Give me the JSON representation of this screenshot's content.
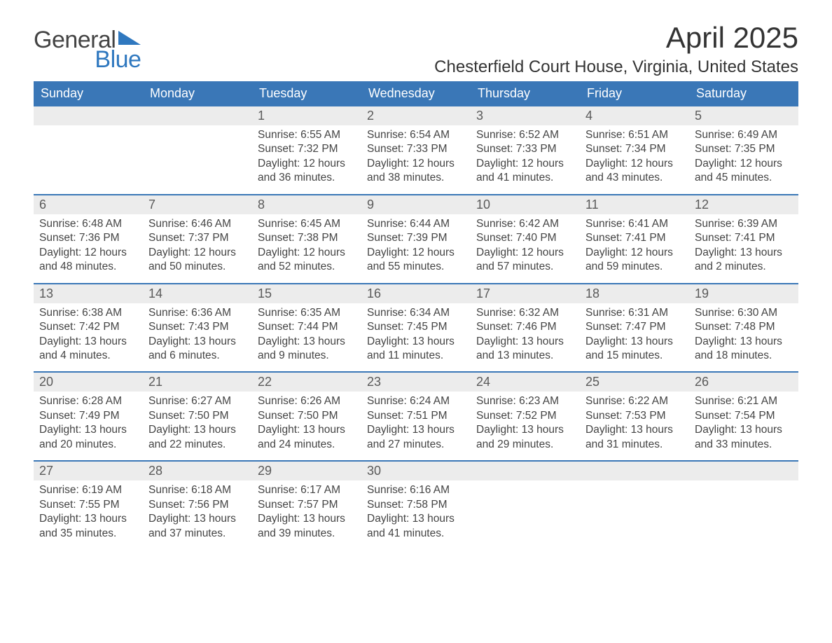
{
  "brand": {
    "general": "General",
    "blue": "Blue",
    "accent_color": "#2f78bf"
  },
  "title": "April 2025",
  "location": "Chesterfield Court House, Virginia, United States",
  "colors": {
    "header_bg": "#3a77b7",
    "header_text": "#ffffff",
    "daynum_bg": "#ececec",
    "daynum_text": "#5a5a5a",
    "body_text": "#444444",
    "week_border": "#3a77b7",
    "page_bg": "#ffffff"
  },
  "typography": {
    "title_fontsize": 42,
    "location_fontsize": 24,
    "header_fontsize": 18,
    "body_fontsize": 15.5
  },
  "day_headers": [
    "Sunday",
    "Monday",
    "Tuesday",
    "Wednesday",
    "Thursday",
    "Friday",
    "Saturday"
  ],
  "weeks": [
    [
      {
        "day": "",
        "sunrise": "",
        "sunset": "",
        "daylight": ""
      },
      {
        "day": "",
        "sunrise": "",
        "sunset": "",
        "daylight": ""
      },
      {
        "day": "1",
        "sunrise": "Sunrise: 6:55 AM",
        "sunset": "Sunset: 7:32 PM",
        "daylight": "Daylight: 12 hours and 36 minutes."
      },
      {
        "day": "2",
        "sunrise": "Sunrise: 6:54 AM",
        "sunset": "Sunset: 7:33 PM",
        "daylight": "Daylight: 12 hours and 38 minutes."
      },
      {
        "day": "3",
        "sunrise": "Sunrise: 6:52 AM",
        "sunset": "Sunset: 7:33 PM",
        "daylight": "Daylight: 12 hours and 41 minutes."
      },
      {
        "day": "4",
        "sunrise": "Sunrise: 6:51 AM",
        "sunset": "Sunset: 7:34 PM",
        "daylight": "Daylight: 12 hours and 43 minutes."
      },
      {
        "day": "5",
        "sunrise": "Sunrise: 6:49 AM",
        "sunset": "Sunset: 7:35 PM",
        "daylight": "Daylight: 12 hours and 45 minutes."
      }
    ],
    [
      {
        "day": "6",
        "sunrise": "Sunrise: 6:48 AM",
        "sunset": "Sunset: 7:36 PM",
        "daylight": "Daylight: 12 hours and 48 minutes."
      },
      {
        "day": "7",
        "sunrise": "Sunrise: 6:46 AM",
        "sunset": "Sunset: 7:37 PM",
        "daylight": "Daylight: 12 hours and 50 minutes."
      },
      {
        "day": "8",
        "sunrise": "Sunrise: 6:45 AM",
        "sunset": "Sunset: 7:38 PM",
        "daylight": "Daylight: 12 hours and 52 minutes."
      },
      {
        "day": "9",
        "sunrise": "Sunrise: 6:44 AM",
        "sunset": "Sunset: 7:39 PM",
        "daylight": "Daylight: 12 hours and 55 minutes."
      },
      {
        "day": "10",
        "sunrise": "Sunrise: 6:42 AM",
        "sunset": "Sunset: 7:40 PM",
        "daylight": "Daylight: 12 hours and 57 minutes."
      },
      {
        "day": "11",
        "sunrise": "Sunrise: 6:41 AM",
        "sunset": "Sunset: 7:41 PM",
        "daylight": "Daylight: 12 hours and 59 minutes."
      },
      {
        "day": "12",
        "sunrise": "Sunrise: 6:39 AM",
        "sunset": "Sunset: 7:41 PM",
        "daylight": "Daylight: 13 hours and 2 minutes."
      }
    ],
    [
      {
        "day": "13",
        "sunrise": "Sunrise: 6:38 AM",
        "sunset": "Sunset: 7:42 PM",
        "daylight": "Daylight: 13 hours and 4 minutes."
      },
      {
        "day": "14",
        "sunrise": "Sunrise: 6:36 AM",
        "sunset": "Sunset: 7:43 PM",
        "daylight": "Daylight: 13 hours and 6 minutes."
      },
      {
        "day": "15",
        "sunrise": "Sunrise: 6:35 AM",
        "sunset": "Sunset: 7:44 PM",
        "daylight": "Daylight: 13 hours and 9 minutes."
      },
      {
        "day": "16",
        "sunrise": "Sunrise: 6:34 AM",
        "sunset": "Sunset: 7:45 PM",
        "daylight": "Daylight: 13 hours and 11 minutes."
      },
      {
        "day": "17",
        "sunrise": "Sunrise: 6:32 AM",
        "sunset": "Sunset: 7:46 PM",
        "daylight": "Daylight: 13 hours and 13 minutes."
      },
      {
        "day": "18",
        "sunrise": "Sunrise: 6:31 AM",
        "sunset": "Sunset: 7:47 PM",
        "daylight": "Daylight: 13 hours and 15 minutes."
      },
      {
        "day": "19",
        "sunrise": "Sunrise: 6:30 AM",
        "sunset": "Sunset: 7:48 PM",
        "daylight": "Daylight: 13 hours and 18 minutes."
      }
    ],
    [
      {
        "day": "20",
        "sunrise": "Sunrise: 6:28 AM",
        "sunset": "Sunset: 7:49 PM",
        "daylight": "Daylight: 13 hours and 20 minutes."
      },
      {
        "day": "21",
        "sunrise": "Sunrise: 6:27 AM",
        "sunset": "Sunset: 7:50 PM",
        "daylight": "Daylight: 13 hours and 22 minutes."
      },
      {
        "day": "22",
        "sunrise": "Sunrise: 6:26 AM",
        "sunset": "Sunset: 7:50 PM",
        "daylight": "Daylight: 13 hours and 24 minutes."
      },
      {
        "day": "23",
        "sunrise": "Sunrise: 6:24 AM",
        "sunset": "Sunset: 7:51 PM",
        "daylight": "Daylight: 13 hours and 27 minutes."
      },
      {
        "day": "24",
        "sunrise": "Sunrise: 6:23 AM",
        "sunset": "Sunset: 7:52 PM",
        "daylight": "Daylight: 13 hours and 29 minutes."
      },
      {
        "day": "25",
        "sunrise": "Sunrise: 6:22 AM",
        "sunset": "Sunset: 7:53 PM",
        "daylight": "Daylight: 13 hours and 31 minutes."
      },
      {
        "day": "26",
        "sunrise": "Sunrise: 6:21 AM",
        "sunset": "Sunset: 7:54 PM",
        "daylight": "Daylight: 13 hours and 33 minutes."
      }
    ],
    [
      {
        "day": "27",
        "sunrise": "Sunrise: 6:19 AM",
        "sunset": "Sunset: 7:55 PM",
        "daylight": "Daylight: 13 hours and 35 minutes."
      },
      {
        "day": "28",
        "sunrise": "Sunrise: 6:18 AM",
        "sunset": "Sunset: 7:56 PM",
        "daylight": "Daylight: 13 hours and 37 minutes."
      },
      {
        "day": "29",
        "sunrise": "Sunrise: 6:17 AM",
        "sunset": "Sunset: 7:57 PM",
        "daylight": "Daylight: 13 hours and 39 minutes."
      },
      {
        "day": "30",
        "sunrise": "Sunrise: 6:16 AM",
        "sunset": "Sunset: 7:58 PM",
        "daylight": "Daylight: 13 hours and 41 minutes."
      },
      {
        "day": "",
        "sunrise": "",
        "sunset": "",
        "daylight": ""
      },
      {
        "day": "",
        "sunrise": "",
        "sunset": "",
        "daylight": ""
      },
      {
        "day": "",
        "sunrise": "",
        "sunset": "",
        "daylight": ""
      }
    ]
  ]
}
